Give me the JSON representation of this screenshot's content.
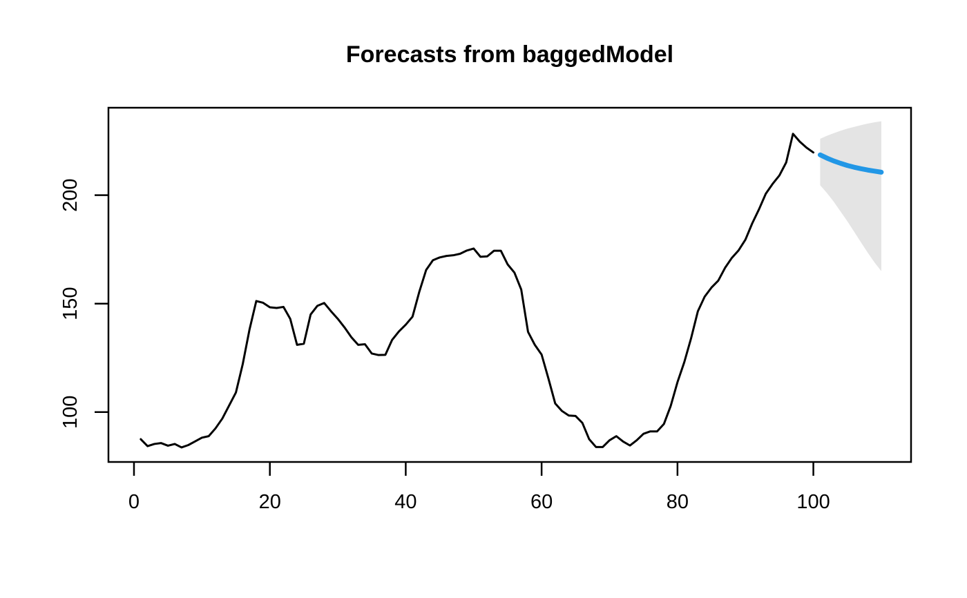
{
  "figure": {
    "background": "#ffffff"
  },
  "chart_data": {
    "type": "line",
    "title": "Forecasts from baggedModel",
    "xlabel": "",
    "ylabel": "",
    "x_ticks": [
      0,
      20,
      40,
      60,
      80,
      100
    ],
    "y_ticks": [
      100,
      150,
      200
    ],
    "xlim": [
      -3.76,
      114.38
    ],
    "ylim": [
      77.0,
      240.33
    ],
    "grid": false,
    "legend": "none",
    "colors": {
      "observed_line": "#000000",
      "forecast_line": "#2297E6",
      "interval_fill": "#E4E4E4",
      "axis": "#000000",
      "background": "#ffffff"
    },
    "series": [
      {
        "name": "observed",
        "role": "history",
        "x_start": 1,
        "values": [
          87.5,
          84.3,
          85.3,
          85.7,
          84.5,
          85.3,
          83.7,
          84.8,
          86.5,
          88.2,
          88.9,
          92.5,
          97,
          103,
          109,
          122,
          138,
          151.2,
          150.4,
          148.3,
          148,
          148.5,
          143,
          131,
          131.5,
          145,
          149,
          150.3,
          146.5,
          143,
          139,
          134.5,
          131,
          131.3,
          127,
          126.3,
          126.4,
          133.3,
          137.2,
          140.3,
          144,
          155.5,
          165.5,
          170,
          171.3,
          172,
          172.3,
          173,
          174.5,
          175.4,
          171.6,
          171.8,
          174.4,
          174.4,
          168.1,
          164.3,
          156.5,
          137,
          131,
          126.5,
          115.5,
          104,
          100.5,
          98.4,
          98.2,
          95,
          87.5,
          83.9,
          83.9,
          87,
          88.9,
          86.4,
          84.6,
          87,
          90,
          91.1,
          91.1,
          94.5,
          102.8,
          113.8,
          123,
          134,
          146.5,
          153.2,
          157.4,
          160.6,
          166.5,
          171.1,
          174.6,
          179.5,
          187,
          193.5,
          200.7,
          205.2,
          209.1,
          215.1,
          228.3,
          224.7,
          221.9,
          219.7
        ]
      },
      {
        "name": "forecast-mean",
        "role": "forecast",
        "x_start": 101,
        "values": [
          218.6,
          217.1,
          215.8,
          214.7,
          213.7,
          212.9,
          212.2,
          211.6,
          211.1,
          210.6
        ]
      },
      {
        "name": "interval-lower",
        "role": "interval-lower",
        "x_start": 101,
        "values": [
          204.6,
          201,
          197,
          192.5,
          188,
          183.2,
          178.3,
          173.5,
          169,
          165
        ]
      },
      {
        "name": "interval-upper",
        "role": "interval-upper",
        "x_start": 101,
        "values": [
          226,
          227.4,
          228.6,
          229.7,
          230.7,
          231.5,
          232.3,
          233,
          233.6,
          234.1
        ]
      }
    ]
  }
}
